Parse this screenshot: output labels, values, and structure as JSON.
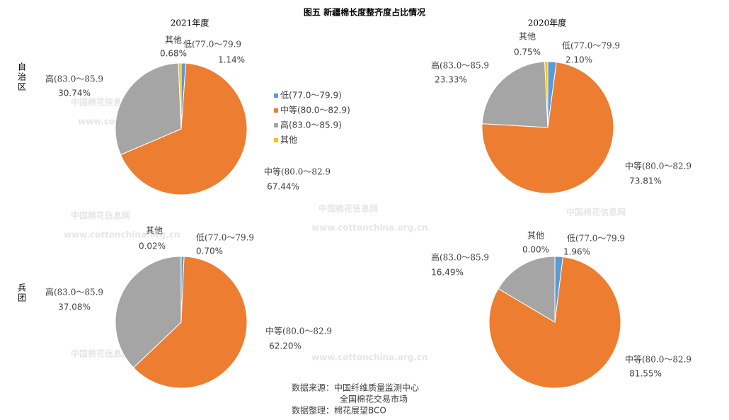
{
  "title": "图五  新疆棉长度整齐度占比情况",
  "columns": [
    "2021年度",
    "2020年度"
  ],
  "rows": [
    "自治区",
    "兵团"
  ],
  "watermark": [
    "中国棉花信息网",
    "www.cottonchina.org.cn"
  ],
  "source": [
    "数据来源：中国纤维质量监测中心",
    "全国棉花交易市场",
    "数据整理：棉花展望BCO"
  ],
  "chart_data": [
    {
      "type": "pie",
      "categories": [
        "低(77.0～79.9)",
        "中等(80.0～82.9)",
        "高(83.0～85.9)",
        "其他"
      ],
      "category_labels": [
        "低(77.0～79.9",
        "中等(80.0～82.9",
        "高(83.0～85.9",
        "其他"
      ],
      "values": [
        1.14,
        67.44,
        30.74,
        0.68
      ],
      "value_labels": [
        "1.14%",
        "67.44%",
        "30.74%",
        "0.68%"
      ],
      "colors": [
        "#5b9bd5",
        "#ed7d31",
        "#a5a5a5",
        "#ffc000"
      ],
      "legend": true
    },
    {
      "type": "pie",
      "categories": [
        "低(77.0～79.9)",
        "中等(80.0～82.9)",
        "高(83.0～85.9)",
        "其他"
      ],
      "category_labels": [
        "低(77.0～79.9",
        "中等(80.0～82.9",
        "高(83.0～85.9",
        "其他"
      ],
      "values": [
        2.1,
        73.81,
        23.33,
        0.75
      ],
      "value_labels": [
        "2.10%",
        "73.81%",
        "23.33%",
        "0.75%"
      ],
      "colors": [
        "#5b9bd5",
        "#ed7d31",
        "#a5a5a5",
        "#ffc000"
      ]
    },
    {
      "type": "pie",
      "categories": [
        "低(77.0～79.9)",
        "中等(80.0～82.9)",
        "高(83.0～85.9)",
        "其他"
      ],
      "category_labels": [
        "低(77.0～79.9",
        "中等(80.0～82.9",
        "高(83.0～85.9",
        "其他"
      ],
      "values": [
        0.7,
        62.2,
        37.08,
        0.02
      ],
      "value_labels": [
        "0.70%",
        "62.20%",
        "37.08%",
        "0.02%"
      ],
      "colors": [
        "#5b9bd5",
        "#ed7d31",
        "#a5a5a5",
        "#ffc000"
      ]
    },
    {
      "type": "pie",
      "categories": [
        "低(77.0～79.9)",
        "中等(80.0～82.9)",
        "高(83.0～85.9)",
        "其他"
      ],
      "category_labels": [
        "低(77.0～79.9",
        "中等(80.0～82.9",
        "高(83.0～85.9",
        "其他"
      ],
      "values": [
        1.96,
        81.55,
        16.49,
        0.0
      ],
      "value_labels": [
        "1.96%",
        "81.55%",
        "16.49%",
        "0.00%"
      ],
      "colors": [
        "#5b9bd5",
        "#ed7d31",
        "#a5a5a5",
        "#ffc000"
      ]
    }
  ]
}
